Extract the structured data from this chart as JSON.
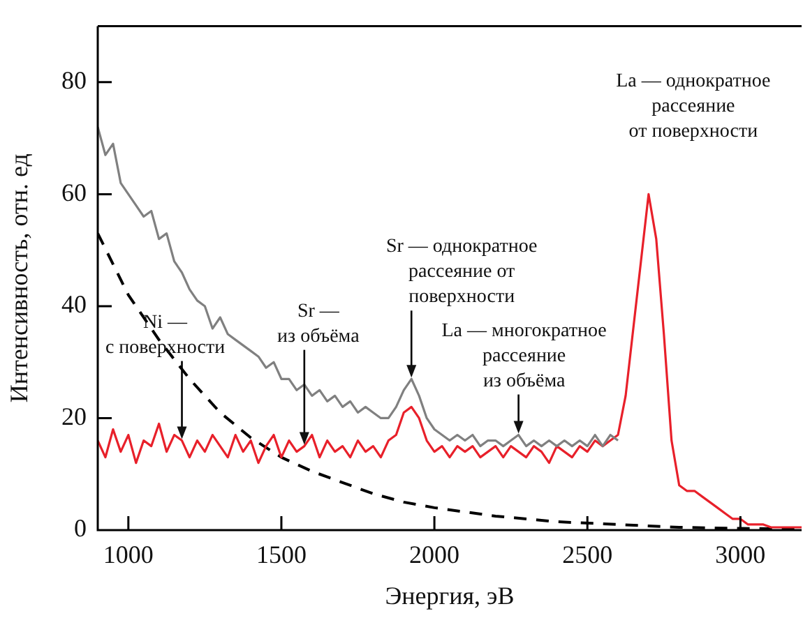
{
  "chart_data": {
    "type": "line",
    "xlabel": "Энергия, эВ",
    "ylabel": "Интенсивность, отн. ед",
    "x": [
      900,
      925,
      950,
      975,
      1000,
      1025,
      1050,
      1075,
      1100,
      1125,
      1150,
      1175,
      1200,
      1225,
      1250,
      1275,
      1300,
      1325,
      1350,
      1375,
      1400,
      1425,
      1450,
      1475,
      1500,
      1525,
      1550,
      1575,
      1600,
      1625,
      1650,
      1675,
      1700,
      1725,
      1750,
      1775,
      1800,
      1825,
      1850,
      1875,
      1900,
      1925,
      1950,
      1975,
      2000,
      2025,
      2050,
      2075,
      2100,
      2125,
      2150,
      2175,
      2200,
      2225,
      2250,
      2275,
      2300,
      2325,
      2350,
      2375,
      2400,
      2425,
      2450,
      2475,
      2500,
      2525,
      2550,
      2575,
      2600,
      2625,
      2650,
      2675,
      2700,
      2725,
      2750,
      2775,
      2800,
      2825,
      2850,
      2875,
      2900,
      2925,
      2950,
      2975,
      3000,
      3025,
      3050,
      3075,
      3100,
      3125,
      3150,
      3175,
      3200
    ],
    "series": [
      {
        "color": "#808080",
        "values": [
          72,
          67,
          69,
          62,
          60,
          58,
          56,
          57,
          52,
          53,
          48,
          46,
          43,
          41,
          40,
          36,
          38,
          35,
          34,
          33,
          32,
          31,
          29,
          30,
          27,
          27,
          25,
          26,
          24,
          25,
          23,
          24,
          22,
          23,
          21,
          22,
          21,
          20,
          20,
          22,
          25,
          27,
          24,
          20,
          18,
          17,
          16,
          17,
          16,
          17,
          15,
          16,
          16,
          15,
          16,
          17,
          15,
          16,
          15,
          16,
          15,
          16,
          15,
          16,
          15,
          17,
          15,
          17,
          16,
          null,
          null,
          null,
          null,
          null,
          null,
          null,
          null,
          null,
          null,
          null,
          null,
          null,
          null,
          null,
          null,
          null,
          null,
          null,
          null,
          null,
          null,
          null,
          null
        ]
      },
      {
        "color": "#e8202a",
        "values": [
          16,
          13,
          18,
          14,
          17,
          12,
          16,
          15,
          19,
          14,
          17,
          16,
          13,
          16,
          14,
          17,
          15,
          13,
          17,
          14,
          16,
          12,
          15,
          17,
          13,
          16,
          14,
          15,
          17,
          13,
          16,
          14,
          15,
          13,
          16,
          14,
          15,
          13,
          16,
          17,
          21,
          22,
          20,
          16,
          14,
          15,
          13,
          15,
          14,
          15,
          13,
          14,
          15,
          13,
          15,
          14,
          13,
          15,
          14,
          12,
          15,
          14,
          13,
          15,
          14,
          16,
          15,
          16,
          17,
          24,
          36,
          48,
          60,
          52,
          35,
          16,
          8,
          7,
          7,
          6,
          5,
          4,
          3,
          2,
          2,
          1,
          1,
          1,
          0.5,
          0.5,
          0.5,
          0.5,
          0.5
        ]
      },
      {
        "color": "#000000",
        "line_style": "dashed",
        "x": [
          900,
          1000,
          1100,
          1200,
          1300,
          1400,
          1500,
          1600,
          1700,
          1800,
          1900,
          2000,
          2200,
          2400,
          2600,
          2800,
          3000,
          3200
        ],
        "values": [
          53,
          42,
          34,
          27,
          21,
          16.5,
          13,
          10.5,
          8.5,
          6.5,
          5,
          4,
          2.5,
          1.5,
          1,
          0.5,
          0.3,
          0.2
        ]
      }
    ],
    "xlim": [
      900,
      3200
    ],
    "xticks": [
      1000,
      1500,
      2000,
      2500,
      3000
    ],
    "ylim": [
      0,
      90
    ],
    "yticks": [
      0,
      20,
      40,
      60,
      80
    ],
    "grid": false,
    "legend": false,
    "marker": "none",
    "line_style": "solid",
    "annotations": [
      {
        "text": "Ni —\nс поверхности",
        "x": 1175,
        "y": 16
      },
      {
        "text": "Sr —\nиз объёма",
        "x": 1575,
        "y": 15
      },
      {
        "text": "Sr — однократное\nрассеяние от\nповерхности",
        "x": 1925,
        "y": 27
      },
      {
        "text": "La — многократное\nрассеяние\nиз объёма",
        "x": 2275,
        "y": 17
      },
      {
        "text": "La — однократное\nрассеяние\nот поверхности",
        "x": 2700,
        "y": 60
      }
    ]
  }
}
